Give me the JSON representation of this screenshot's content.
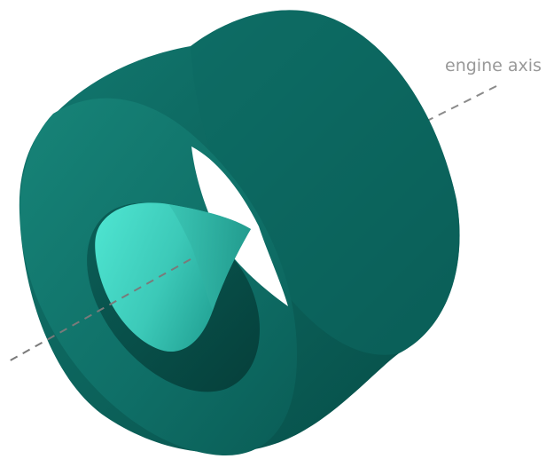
{
  "labels": {
    "axis": "engine axis"
  },
  "colors": {
    "background": "#ffffff",
    "nacelle_light": "#1a8c80",
    "nacelle_mid": "#0e6e66",
    "nacelle_dark": "#064f49",
    "nacelle_inner": "#0a5d56",
    "cone_light": "#47e0cc",
    "cone_dark": "#22a89a",
    "axis_line": "#888888",
    "axis_text": "#999999"
  }
}
